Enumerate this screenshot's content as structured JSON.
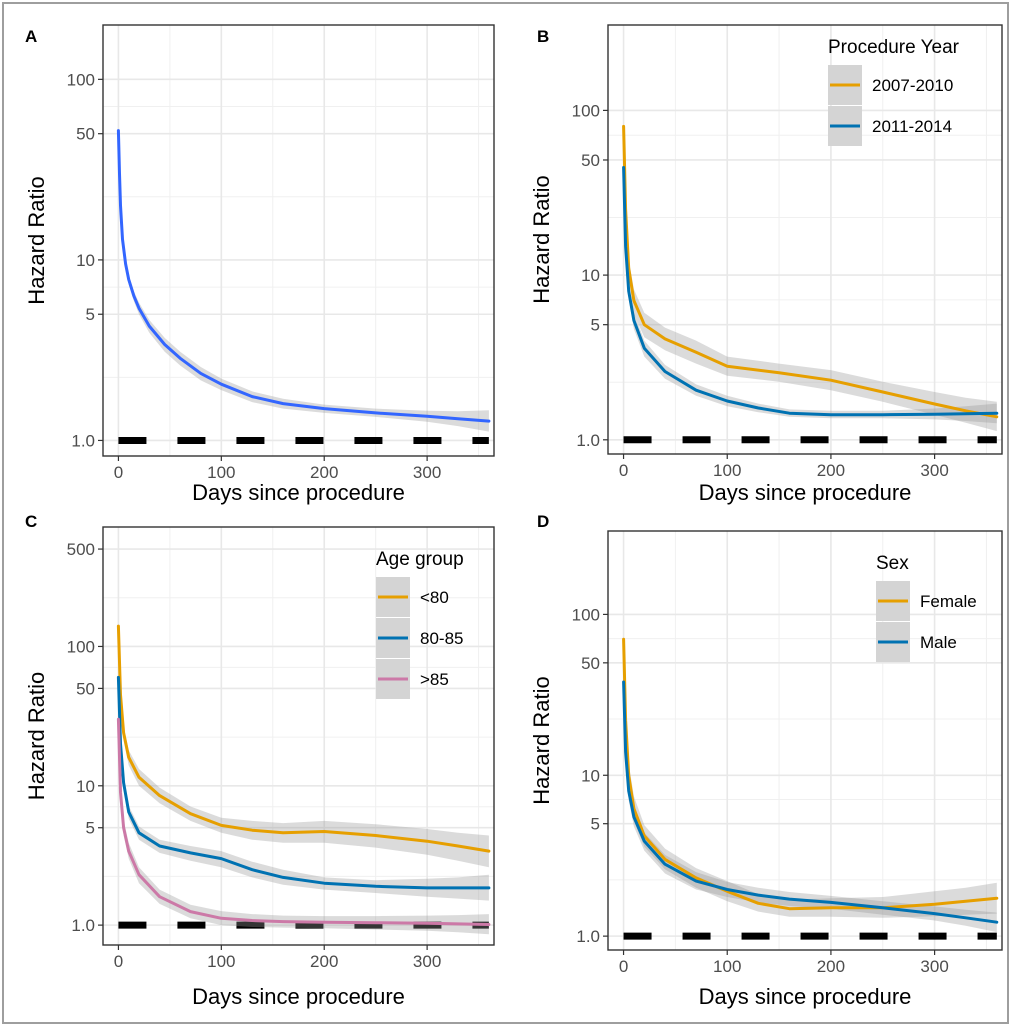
{
  "chart_data": [
    {
      "panel": "A",
      "type": "line",
      "xlabel": "Days since procedure",
      "ylabel": "Hazard Ratio",
      "xlim": [
        -15,
        365
      ],
      "ylim": [
        0.82,
        200
      ],
      "yscale": "log",
      "grid": true,
      "x_ticks": [
        0,
        100,
        200,
        300
      ],
      "y_ticks": [
        1.0,
        5,
        10,
        50,
        100
      ],
      "y_tick_labels": [
        "1.0",
        "5",
        "10",
        "50",
        "100"
      ],
      "reference_line": {
        "y": 1.0,
        "style": "dashed"
      },
      "legend": null,
      "series": [
        {
          "name": "",
          "color": "#3366ff",
          "x": [
            0,
            1,
            2,
            4,
            7,
            10,
            15,
            20,
            30,
            45,
            60,
            80,
            100,
            130,
            160,
            200,
            250,
            300,
            330,
            360
          ],
          "y": [
            52,
            30,
            20,
            13,
            9.5,
            7.8,
            6.3,
            5.4,
            4.3,
            3.4,
            2.85,
            2.35,
            2.05,
            1.75,
            1.6,
            1.5,
            1.42,
            1.36,
            1.32,
            1.28
          ],
          "ci_lower": [
            52,
            29,
            19,
            12.5,
            9.0,
            7.3,
            5.9,
            5.0,
            3.95,
            3.1,
            2.6,
            2.15,
            1.9,
            1.63,
            1.5,
            1.42,
            1.35,
            1.27,
            1.2,
            1.12
          ],
          "ci_upper": [
            52,
            31,
            21,
            13.5,
            10.0,
            8.3,
            6.7,
            5.8,
            4.65,
            3.7,
            3.1,
            2.55,
            2.2,
            1.87,
            1.7,
            1.58,
            1.5,
            1.46,
            1.45,
            1.47
          ]
        }
      ]
    },
    {
      "panel": "B",
      "type": "line",
      "xlabel": "Days since procedure",
      "ylabel": "Hazard Ratio",
      "xlim": [
        -15,
        365
      ],
      "ylim": [
        0.82,
        330
      ],
      "yscale": "log",
      "grid": true,
      "x_ticks": [
        0,
        100,
        200,
        300
      ],
      "y_ticks": [
        1.0,
        5,
        10,
        50,
        100
      ],
      "y_tick_labels": [
        "1.0",
        "5",
        "10",
        "50",
        "100"
      ],
      "reference_line": {
        "y": 1.0,
        "style": "dashed"
      },
      "legend": {
        "title": "Procedure Year",
        "position": "top-right"
      },
      "series": [
        {
          "name": "2007-2010",
          "color": "#e69f00",
          "x": [
            0,
            2,
            5,
            10,
            20,
            40,
            70,
            100,
            150,
            200,
            250,
            300,
            330,
            360
          ],
          "y": [
            80,
            25,
            11,
            7.0,
            5.0,
            4.1,
            3.4,
            2.8,
            2.55,
            2.3,
            1.95,
            1.65,
            1.5,
            1.38
          ],
          "ci_lower": [
            80,
            23,
            9.5,
            5.8,
            4.2,
            3.5,
            2.9,
            2.45,
            2.25,
            2.0,
            1.7,
            1.42,
            1.27,
            1.13
          ],
          "ci_upper": [
            80,
            27,
            12.5,
            8.2,
            5.9,
            4.8,
            4.0,
            3.2,
            2.9,
            2.65,
            2.25,
            1.95,
            1.8,
            1.7
          ]
        },
        {
          "name": "2011-2014",
          "color": "#0072b2",
          "x": [
            0,
            2,
            5,
            10,
            20,
            40,
            70,
            100,
            130,
            160,
            200,
            250,
            300,
            330,
            360
          ],
          "y": [
            45,
            15,
            8,
            5.3,
            3.6,
            2.6,
            2.0,
            1.72,
            1.56,
            1.45,
            1.42,
            1.42,
            1.43,
            1.44,
            1.45
          ],
          "ci_lower": [
            45,
            14,
            7.2,
            4.7,
            3.2,
            2.35,
            1.85,
            1.6,
            1.47,
            1.38,
            1.35,
            1.35,
            1.33,
            1.3,
            1.26
          ],
          "ci_upper": [
            45,
            16,
            8.8,
            5.9,
            4.0,
            2.85,
            2.17,
            1.85,
            1.66,
            1.53,
            1.5,
            1.5,
            1.55,
            1.6,
            1.66
          ]
        }
      ]
    },
    {
      "panel": "C",
      "type": "line",
      "xlabel": "Days since procedure",
      "ylabel": "Hazard Ratio",
      "xlim": [
        -15,
        365
      ],
      "ylim": [
        0.72,
        720
      ],
      "yscale": "log",
      "grid": true,
      "x_ticks": [
        0,
        100,
        200,
        300
      ],
      "y_ticks": [
        1.0,
        5,
        10,
        50,
        100,
        500
      ],
      "y_tick_labels": [
        "1.0",
        "5",
        "10",
        "50",
        "100",
        "500"
      ],
      "reference_line": {
        "y": 1.0,
        "style": "dashed"
      },
      "legend": {
        "title": "Age group",
        "position": "top-right"
      },
      "series": [
        {
          "name": "<80",
          "color": "#e69f00",
          "x": [
            0,
            2,
            5,
            10,
            20,
            40,
            70,
            100,
            130,
            160,
            200,
            250,
            300,
            330,
            360
          ],
          "y": [
            140,
            45,
            24,
            16,
            11.5,
            8.5,
            6.3,
            5.2,
            4.8,
            4.6,
            4.7,
            4.4,
            4.0,
            3.7,
            3.4
          ],
          "ci_lower": [
            140,
            41,
            21,
            14,
            10.0,
            7.5,
            5.6,
            4.6,
            4.1,
            3.9,
            3.9,
            3.6,
            3.2,
            2.9,
            2.6
          ],
          "ci_upper": [
            140,
            49,
            27,
            18,
            13.2,
            9.7,
            7.1,
            5.9,
            5.6,
            5.4,
            5.6,
            5.3,
            4.9,
            4.6,
            4.4
          ]
        },
        {
          "name": "80-85",
          "color": "#0072b2",
          "x": [
            0,
            2,
            5,
            10,
            20,
            40,
            70,
            100,
            130,
            160,
            200,
            250,
            300,
            330,
            360
          ],
          "y": [
            60,
            20,
            10.5,
            6.5,
            4.6,
            3.7,
            3.3,
            3.0,
            2.5,
            2.2,
            2.0,
            1.9,
            1.85,
            1.85,
            1.85
          ],
          "ci_lower": [
            60,
            18,
            9.5,
            5.8,
            4.1,
            3.3,
            2.9,
            2.6,
            2.2,
            1.95,
            1.8,
            1.7,
            1.6,
            1.55,
            1.5
          ],
          "ci_upper": [
            60,
            22,
            11.5,
            7.2,
            5.1,
            4.1,
            3.7,
            3.4,
            2.85,
            2.5,
            2.2,
            2.1,
            2.15,
            2.2,
            2.3
          ]
        },
        {
          "name": ">85",
          "color": "#cc79a7",
          "x": [
            0,
            2,
            5,
            10,
            20,
            40,
            70,
            100,
            130,
            160,
            200,
            250,
            300,
            330,
            360
          ],
          "y": [
            30,
            9,
            5.0,
            3.4,
            2.3,
            1.6,
            1.25,
            1.12,
            1.08,
            1.06,
            1.05,
            1.04,
            1.03,
            1.02,
            1.01
          ],
          "ci_lower": [
            30,
            8,
            4.4,
            3.0,
            2.0,
            1.42,
            1.12,
            1.0,
            0.97,
            0.96,
            0.95,
            0.93,
            0.91,
            0.89,
            0.86
          ],
          "ci_upper": [
            30,
            10,
            5.7,
            3.9,
            2.6,
            1.8,
            1.4,
            1.26,
            1.2,
            1.17,
            1.16,
            1.16,
            1.17,
            1.18,
            1.2
          ]
        }
      ]
    },
    {
      "panel": "D",
      "type": "line",
      "xlabel": "Days since procedure",
      "ylabel": "Hazard Ratio",
      "xlim": [
        -15,
        365
      ],
      "ylim": [
        0.82,
        330
      ],
      "yscale": "log",
      "grid": true,
      "x_ticks": [
        0,
        100,
        200,
        300
      ],
      "y_ticks": [
        1.0,
        5,
        10,
        50,
        100
      ],
      "y_tick_labels": [
        "1.0",
        "5",
        "10",
        "50",
        "100"
      ],
      "reference_line": {
        "y": 1.0,
        "style": "dashed"
      },
      "legend": {
        "title": "Sex",
        "position": "top-right"
      },
      "series": [
        {
          "name": "Female",
          "color": "#e69f00",
          "x": [
            0,
            2,
            5,
            10,
            20,
            40,
            70,
            100,
            130,
            160,
            200,
            250,
            300,
            330,
            360
          ],
          "y": [
            70,
            22,
            10,
            6.2,
            4.2,
            3.0,
            2.3,
            1.9,
            1.6,
            1.48,
            1.5,
            1.5,
            1.58,
            1.65,
            1.72
          ],
          "ci_lower": [
            70,
            19,
            8.5,
            5.2,
            3.6,
            2.6,
            2.0,
            1.65,
            1.42,
            1.32,
            1.32,
            1.3,
            1.33,
            1.36,
            1.38
          ],
          "ci_upper": [
            70,
            25,
            11.8,
            7.4,
            4.9,
            3.5,
            2.65,
            2.2,
            1.82,
            1.68,
            1.72,
            1.75,
            1.9,
            2.0,
            2.15
          ]
        },
        {
          "name": "Male",
          "color": "#0072b2",
          "x": [
            0,
            2,
            5,
            10,
            20,
            40,
            70,
            100,
            130,
            160,
            200,
            250,
            300,
            330,
            360
          ],
          "y": [
            38,
            14,
            8,
            5.5,
            3.9,
            2.8,
            2.2,
            1.95,
            1.8,
            1.7,
            1.62,
            1.5,
            1.38,
            1.3,
            1.22
          ],
          "ci_lower": [
            38,
            12.5,
            7,
            4.8,
            3.4,
            2.45,
            1.95,
            1.75,
            1.62,
            1.54,
            1.48,
            1.36,
            1.25,
            1.16,
            1.06
          ],
          "ci_upper": [
            38,
            15.5,
            9.2,
            6.3,
            4.4,
            3.2,
            2.5,
            2.17,
            2.0,
            1.88,
            1.78,
            1.65,
            1.53,
            1.46,
            1.4
          ]
        }
      ]
    }
  ]
}
